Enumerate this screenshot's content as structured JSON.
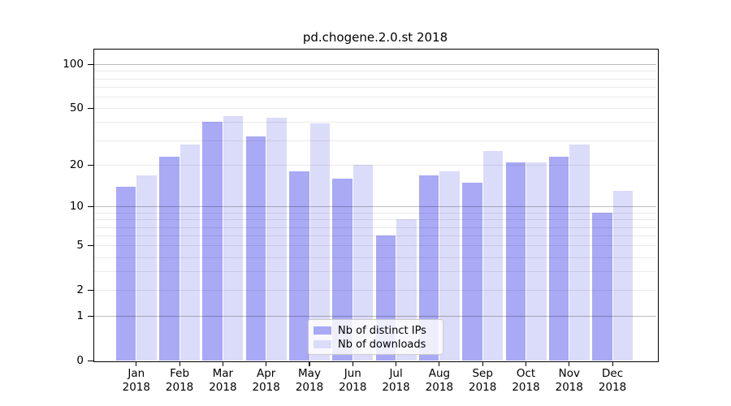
{
  "title": "pd.chogene.2.0.st 2018",
  "chart_data": {
    "type": "bar",
    "title": "pd.chogene.2.0.st 2018",
    "xlabel": "",
    "ylabel": "",
    "categories": [
      "Jan",
      "Feb",
      "Mar",
      "Apr",
      "May",
      "Jun",
      "Jul",
      "Aug",
      "Sep",
      "Oct",
      "Nov",
      "Dec"
    ],
    "x_tick_year": "2018",
    "series": [
      {
        "name": "Nb of distinct IPs",
        "color": "#a9a9f6",
        "values": [
          14,
          23,
          40,
          32,
          18,
          16,
          6,
          17,
          15,
          21,
          23,
          9
        ]
      },
      {
        "name": "Nb of downloads",
        "color": "#dbdbfa",
        "values": [
          17,
          28,
          44,
          43,
          39,
          20,
          8,
          18,
          25,
          21,
          28,
          13
        ]
      }
    ],
    "y_axis": {
      "scale": "log(1+y)",
      "tick_labels": [
        "0",
        "1",
        "2",
        "5",
        "10",
        "20",
        "50",
        "100"
      ],
      "tick_values": [
        0,
        1,
        2,
        5,
        10,
        20,
        50,
        100
      ],
      "major_gridlines": [
        1,
        10,
        100
      ],
      "minor_gridlines": [
        2,
        3,
        4,
        5,
        6,
        7,
        8,
        9,
        20,
        30,
        40,
        50,
        60,
        70,
        80,
        90
      ],
      "ylim": [
        0,
        127
      ],
      "grid": "on"
    },
    "legend_position": "lower center"
  },
  "colors": {
    "background": "#ffffff",
    "distinct_ips_bar": "#a9a9f6",
    "downloads_bar": "#dbdbfa",
    "frame": "#000000",
    "legend_border": "#cccccc"
  }
}
